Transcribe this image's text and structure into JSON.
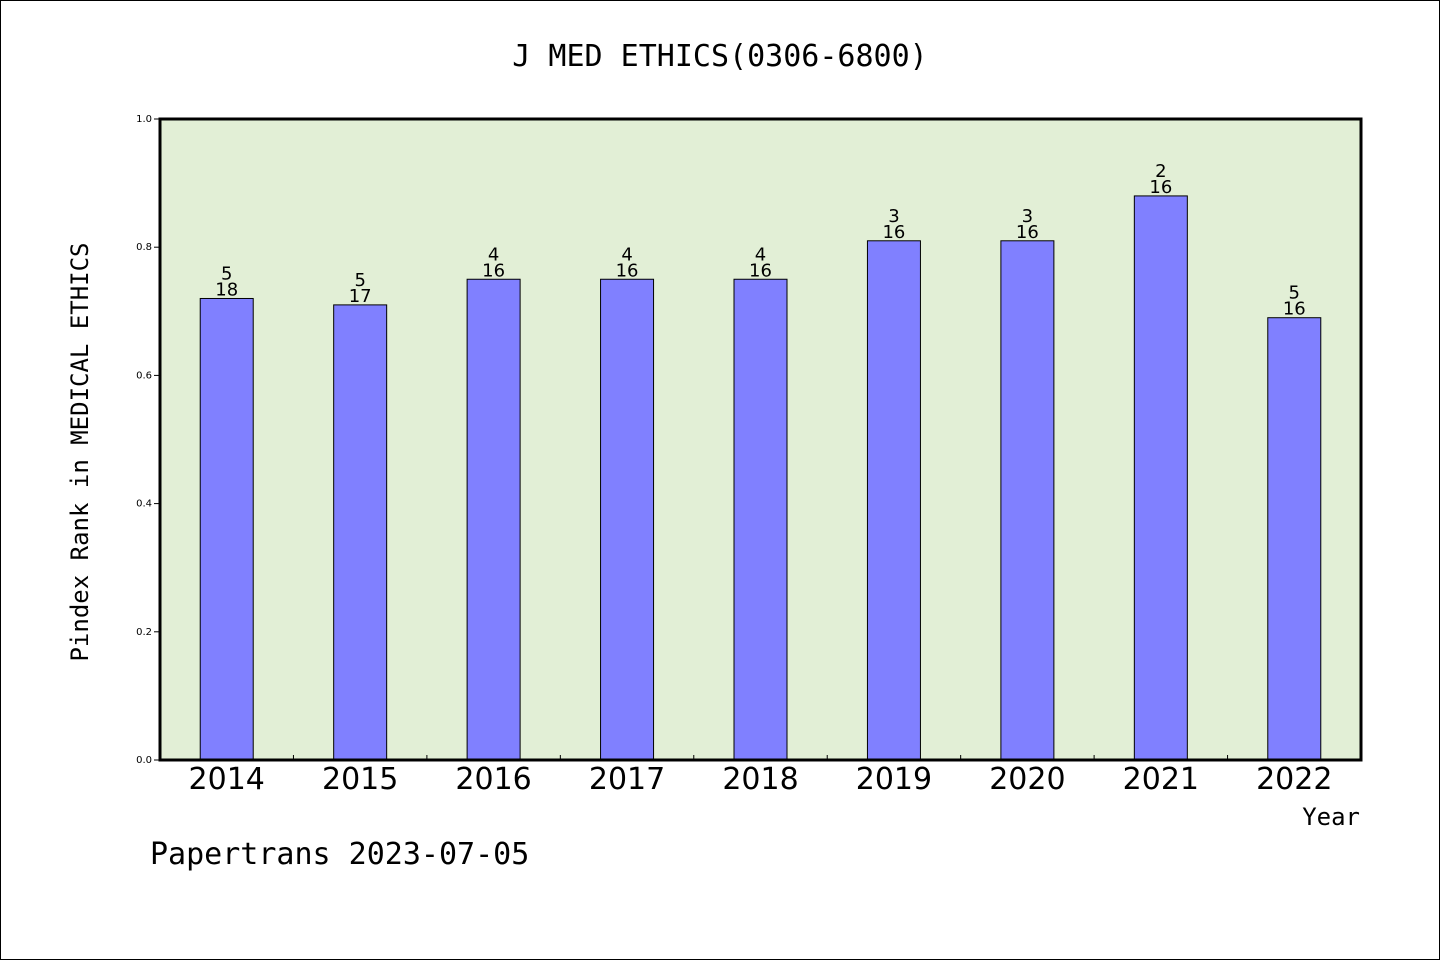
{
  "chart_data": {
    "type": "bar",
    "title": "J MED ETHICS(0306-6800)",
    "xlabel": "Year",
    "ylabel": "Pindex Rank in MEDICAL ETHICS",
    "ylim": [
      0,
      1.0
    ],
    "yticks": [
      "0.0",
      "0.2",
      "0.4",
      "0.6",
      "0.8",
      "1.0"
    ],
    "ytick_values": [
      0,
      0.2,
      0.4,
      0.6,
      0.8,
      1.0
    ],
    "categories": [
      "2014",
      "2015",
      "2016",
      "2017",
      "2018",
      "2019",
      "2020",
      "2021",
      "2022"
    ],
    "values": [
      0.72,
      0.71,
      0.75,
      0.75,
      0.75,
      0.81,
      0.81,
      0.88,
      0.69
    ],
    "rank_labels": [
      "5",
      "5",
      "4",
      "4",
      "4",
      "3",
      "3",
      "2",
      "5"
    ],
    "total_labels": [
      "18",
      "17",
      "16",
      "16",
      "16",
      "16",
      "16",
      "16",
      "16"
    ],
    "grid": false,
    "colors": {
      "bar": "#8080ff",
      "plot_background": "#e2efd6",
      "axis": "#000000"
    }
  },
  "footer": {
    "source": "Papertrans 2023-07-05"
  }
}
